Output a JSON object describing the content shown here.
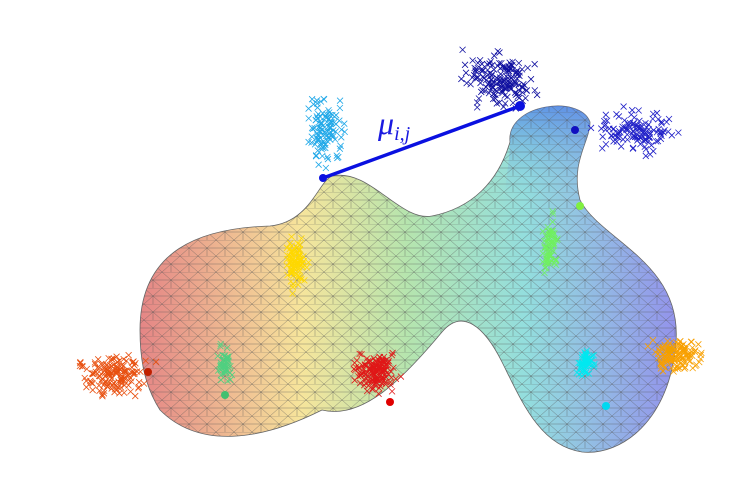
{
  "annotation": {
    "symbol": "μ",
    "subscript": "i,j"
  }
}
